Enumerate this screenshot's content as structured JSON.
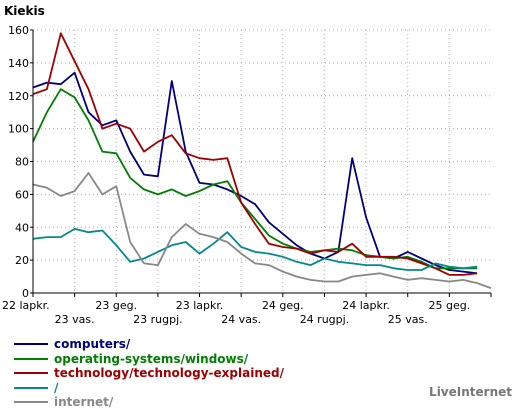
{
  "chart_data": {
    "type": "line",
    "title": "Kiekis",
    "ylim": [
      0,
      160
    ],
    "yticks": [
      0,
      20,
      40,
      60,
      80,
      100,
      120,
      140,
      160
    ],
    "x": [
      0,
      1,
      2,
      3,
      4,
      5,
      6,
      7,
      8,
      9,
      10,
      11,
      12,
      13,
      14,
      15,
      16,
      17,
      18,
      19,
      20,
      21,
      22,
      23,
      24,
      25,
      26,
      27,
      28,
      29,
      30,
      31,
      32,
      33
    ],
    "xlabels_top": [
      {
        "x": 0,
        "label": "22 lapkr."
      },
      {
        "x": 6,
        "label": "23 geg."
      },
      {
        "x": 12,
        "label": "23 lapkr."
      },
      {
        "x": 18,
        "label": "24 geg."
      },
      {
        "x": 24,
        "label": "24 lapkr."
      },
      {
        "x": 30,
        "label": "25 geg."
      }
    ],
    "xlabels_bottom": [
      {
        "x": 3,
        "label": "23 vas."
      },
      {
        "x": 9,
        "label": "23 rugpj."
      },
      {
        "x": 15,
        "label": "24 vas."
      },
      {
        "x": 21,
        "label": "24 rugpj."
      },
      {
        "x": 27,
        "label": "25 vas."
      }
    ],
    "series": [
      {
        "name": "computers/",
        "color": "#000080",
        "values": [
          125,
          128,
          127,
          134,
          110,
          102,
          105,
          86,
          72,
          71,
          129,
          86,
          67,
          66,
          63,
          59,
          54,
          43,
          36,
          29,
          24,
          21,
          25,
          82,
          46,
          22,
          21,
          25,
          21,
          17,
          14,
          13,
          12,
          null
        ]
      },
      {
        "name": "operating-systems/windows/",
        "color": "#008000",
        "values": [
          92,
          110,
          124,
          119,
          105,
          86,
          85,
          70,
          63,
          60,
          63,
          59,
          62,
          66,
          68,
          55,
          45,
          35,
          30,
          27,
          25,
          26,
          27,
          26,
          23,
          22,
          21,
          22,
          19,
          15,
          15,
          15,
          15,
          null
        ]
      },
      {
        "name": "technology/technology-explained/",
        "color": "#a00000",
        "values": [
          121,
          124,
          158,
          141,
          124,
          100,
          103,
          100,
          86,
          92,
          96,
          85,
          82,
          81,
          82,
          55,
          42,
          30,
          28,
          27,
          24,
          26,
          25,
          30,
          22,
          22,
          22,
          21,
          18,
          15,
          11,
          11,
          12,
          null
        ]
      },
      {
        "name": "/",
        "color": "#008b8b",
        "values": [
          33,
          34,
          34,
          39,
          37,
          38,
          29,
          19,
          21,
          25,
          29,
          31,
          24,
          30,
          37,
          28,
          25,
          24,
          22,
          19,
          17,
          21,
          19,
          18,
          17,
          17,
          15,
          14,
          14,
          18,
          16,
          15,
          16,
          null
        ]
      },
      {
        "name": "internet/",
        "color": "#888888",
        "values": [
          66,
          64,
          59,
          62,
          73,
          60,
          65,
          31,
          18,
          17,
          34,
          42,
          36,
          34,
          31,
          24,
          18,
          17,
          13,
          10,
          8,
          7,
          7,
          10,
          11,
          12,
          10,
          8,
          9,
          8,
          7,
          8,
          6,
          3
        ]
      }
    ]
  },
  "watermark": "LiveInternet"
}
